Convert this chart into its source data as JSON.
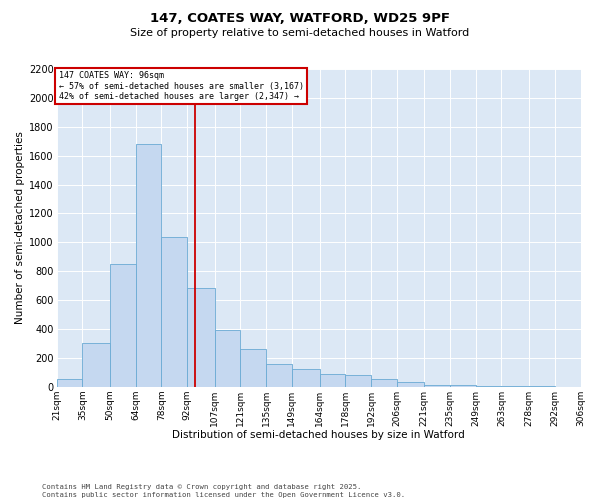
{
  "title_line1": "147, COATES WAY, WATFORD, WD25 9PF",
  "title_line2": "Size of property relative to semi-detached houses in Watford",
  "xlabel": "Distribution of semi-detached houses by size in Watford",
  "ylabel": "Number of semi-detached properties",
  "annotation_title": "147 COATES WAY: 96sqm",
  "annotation_line2": "← 57% of semi-detached houses are smaller (3,167)",
  "annotation_line3": "42% of semi-detached houses are larger (2,347) →",
  "footer_line1": "Contains HM Land Registry data © Crown copyright and database right 2025.",
  "footer_line2": "Contains public sector information licensed under the Open Government Licence v3.0.",
  "property_size": 96,
  "bin_edges": [
    21,
    35,
    50,
    64,
    78,
    92,
    107,
    121,
    135,
    149,
    164,
    178,
    192,
    206,
    221,
    235,
    249,
    263,
    278,
    292,
    306
  ],
  "bar_heights": [
    55,
    300,
    850,
    1680,
    1040,
    680,
    390,
    260,
    160,
    120,
    90,
    80,
    50,
    30,
    15,
    10,
    5,
    3,
    2,
    1
  ],
  "bar_color": "#c5d8f0",
  "bar_edge_color": "#6aaad4",
  "vline_color": "#cc0000",
  "annotation_box_edgecolor": "#cc0000",
  "grid_color": "#ffffff",
  "plot_bg_color": "#dce8f5",
  "ylim": [
    0,
    2200
  ],
  "yticks": [
    0,
    200,
    400,
    600,
    800,
    1000,
    1200,
    1400,
    1600,
    1800,
    2000,
    2200
  ],
  "fig_width": 6.0,
  "fig_height": 5.0,
  "dpi": 100
}
